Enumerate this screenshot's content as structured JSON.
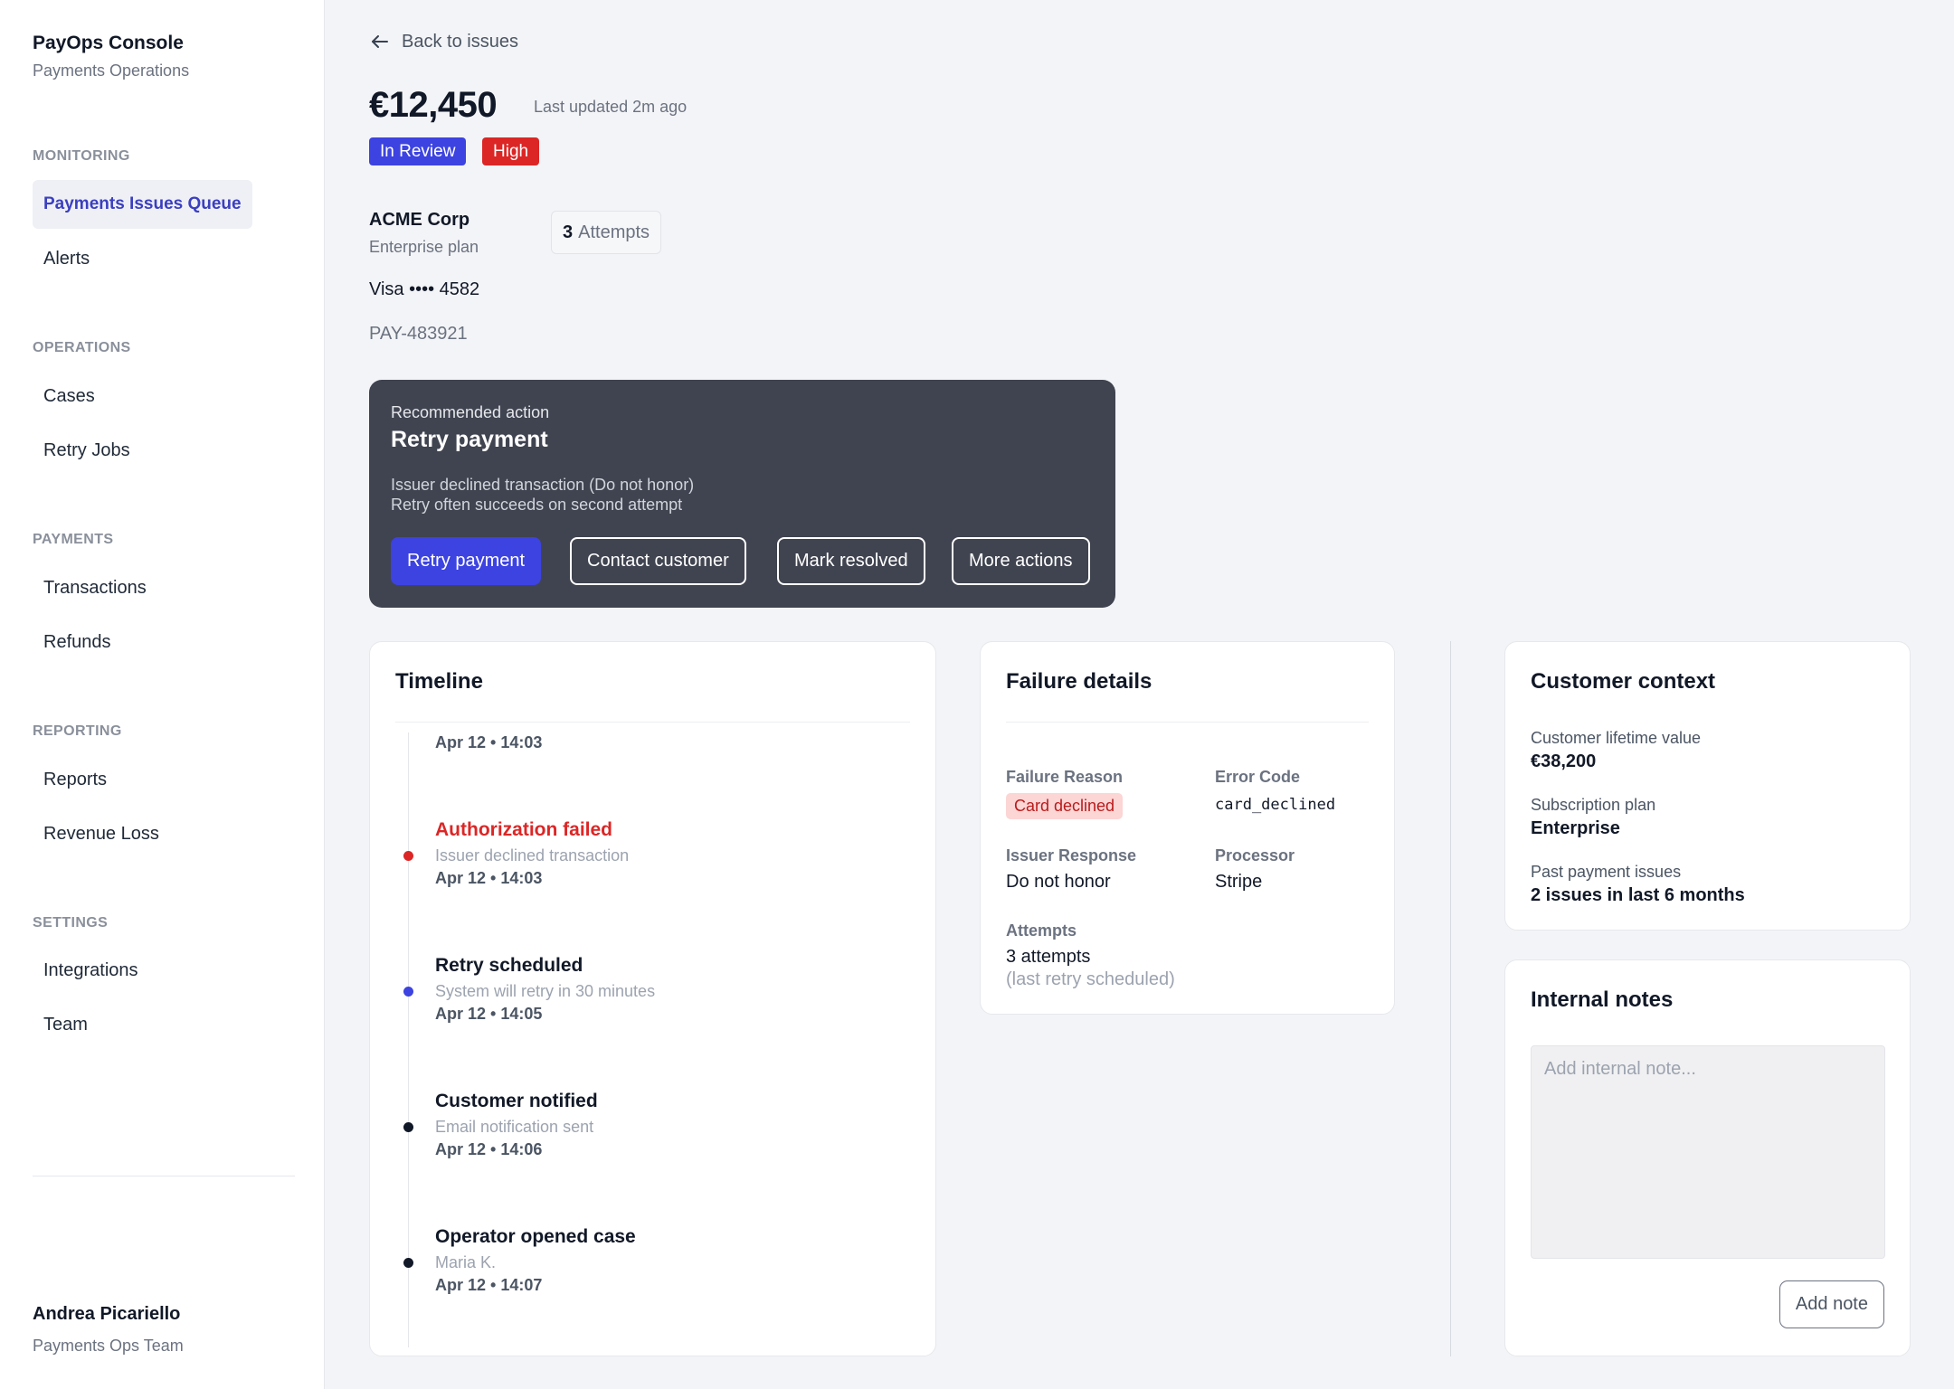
{
  "sidebar": {
    "brand_title": "PayOps Console",
    "brand_subtitle": "Payments Operations",
    "sections": {
      "monitoring": {
        "label": "MONITORING",
        "items": [
          "Payments Issues Queue",
          "Alerts"
        ]
      },
      "operations": {
        "label": "OPERATIONS",
        "items": [
          "Cases",
          "Retry Jobs"
        ]
      },
      "payments": {
        "label": "PAYMENTS",
        "items": [
          "Transactions",
          "Refunds"
        ]
      },
      "reporting": {
        "label": "REPORTING",
        "items": [
          "Reports",
          "Revenue Loss"
        ]
      },
      "settings": {
        "label": "SETTINGS",
        "items": [
          "Integrations",
          "Team"
        ]
      }
    },
    "active_item": "Payments Issues Queue",
    "user": {
      "name": "Andrea Picariello",
      "team": "Payments Ops Team"
    }
  },
  "header": {
    "back_label": "Back to issues",
    "amount": "€12,450",
    "last_updated": "Last updated 2m ago",
    "status_badge": "In Review",
    "priority_badge": "High",
    "customer_name": "ACME Corp",
    "customer_plan": "Enterprise plan",
    "attempts_count": "3",
    "attempts_label": "Attempts",
    "card": "Visa •••• 4582",
    "payment_id": "PAY-483921"
  },
  "recommended": {
    "kicker": "Recommended action",
    "title": "Retry payment",
    "desc_line1": "Issuer declined transaction (Do not honor)",
    "desc_line2": "Retry often succeeds on second attempt",
    "buttons": {
      "retry": "Retry payment",
      "contact": "Contact customer",
      "resolve": "Mark resolved",
      "more": "More actions"
    }
  },
  "timeline": {
    "title": "Timeline",
    "cut_off_time": "Apr 12 • 14:03",
    "events": [
      {
        "title": "Authorization failed",
        "subtitle": "Issuer declined transaction",
        "time": "Apr 12 • 14:03"
      },
      {
        "title": "Retry scheduled",
        "subtitle": "System will retry in 30 minutes",
        "time": "Apr 12 • 14:05"
      },
      {
        "title": "Customer notified",
        "subtitle": "Email notification sent",
        "time": "Apr 12 • 14:06"
      },
      {
        "title": "Operator opened case",
        "subtitle": "Maria K.",
        "time": "Apr 12 • 14:07"
      }
    ],
    "colors": {
      "failed": "#dc2626",
      "scheduled": "#3d43e0",
      "default": "#111827"
    }
  },
  "failure": {
    "title": "Failure details",
    "reason_label": "Failure Reason",
    "reason_value": "Card declined",
    "code_label": "Error Code",
    "code_value": "card_declined",
    "issuer_label": "Issuer Response",
    "issuer_value": "Do not honor",
    "processor_label": "Processor",
    "processor_value": "Stripe",
    "attempts_label": "Attempts",
    "attempts_value": "3 attempts",
    "attempts_note": "(last retry scheduled)"
  },
  "context": {
    "title": "Customer context",
    "ltv_label": "Customer lifetime value",
    "ltv_value": "€38,200",
    "plan_label": "Subscription plan",
    "plan_value": "Enterprise",
    "past_label": "Past payment issues",
    "past_value": "2 issues in last 6 months"
  },
  "notes": {
    "title": "Internal notes",
    "placeholder": "Add internal note...",
    "button": "Add note"
  },
  "icons": {
    "back": "arrow-left-icon"
  },
  "colors": {
    "accent": "#3d43e0",
    "danger": "#dc2626",
    "dark_panel": "#404450"
  }
}
